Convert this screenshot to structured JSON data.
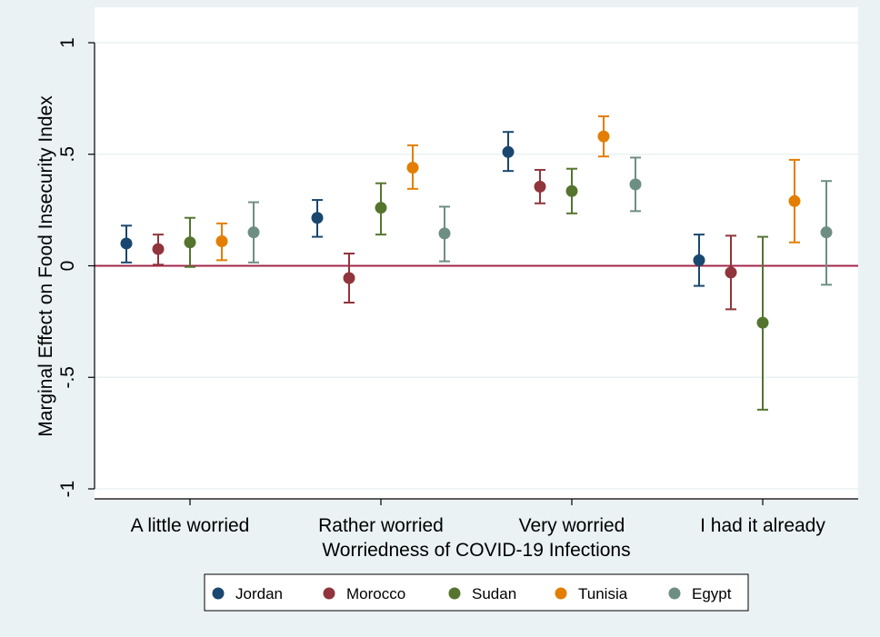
{
  "chart_data": {
    "type": "scatter",
    "subtype": "dot-with-error-bars",
    "title": "",
    "xlabel": "Worriedness of COVID-19 Infections",
    "ylabel": "Marginal Effect on Food Insecurity Index",
    "categories": [
      "A little worried",
      "Rather worried",
      "Very worried",
      "I had it already"
    ],
    "ylim": [
      -1,
      1
    ],
    "yticks": [
      {
        "value": 1,
        "label": "1"
      },
      {
        "value": 0.5,
        "label": ".5"
      },
      {
        "value": 0,
        "label": "0"
      },
      {
        "value": -0.5,
        "label": "-.5"
      },
      {
        "value": -1,
        "label": "-1"
      }
    ],
    "grid": true,
    "reference_line": {
      "value": 0,
      "color": "#a0254a"
    },
    "legend_position": "bottom",
    "series": [
      {
        "name": "Jordan",
        "color": "#1a476f",
        "values": [
          0.1,
          0.215,
          0.51,
          0.025
        ],
        "ci_low": [
          0.015,
          0.13,
          0.425,
          -0.09
        ],
        "ci_high": [
          0.18,
          0.295,
          0.6,
          0.14
        ]
      },
      {
        "name": "Morocco",
        "color": "#90353b",
        "values": [
          0.075,
          -0.055,
          0.355,
          -0.03
        ],
        "ci_low": [
          0.005,
          -0.165,
          0.28,
          -0.195
        ],
        "ci_high": [
          0.14,
          0.055,
          0.43,
          0.135
        ]
      },
      {
        "name": "Sudan",
        "color": "#55752f",
        "values": [
          0.105,
          0.26,
          0.335,
          -0.255
        ],
        "ci_low": [
          -0.005,
          0.14,
          0.235,
          -0.645
        ],
        "ci_high": [
          0.215,
          0.37,
          0.435,
          0.13
        ]
      },
      {
        "name": "Tunisia",
        "color": "#e37e00",
        "values": [
          0.11,
          0.44,
          0.58,
          0.29
        ],
        "ci_low": [
          0.025,
          0.345,
          0.49,
          0.105
        ],
        "ci_high": [
          0.19,
          0.54,
          0.67,
          0.475
        ]
      },
      {
        "name": "Egypt",
        "color": "#6e8e84",
        "values": [
          0.15,
          0.145,
          0.365,
          0.15
        ],
        "ci_low": [
          0.015,
          0.02,
          0.245,
          -0.085
        ],
        "ci_high": [
          0.285,
          0.265,
          0.485,
          0.38
        ]
      }
    ]
  }
}
